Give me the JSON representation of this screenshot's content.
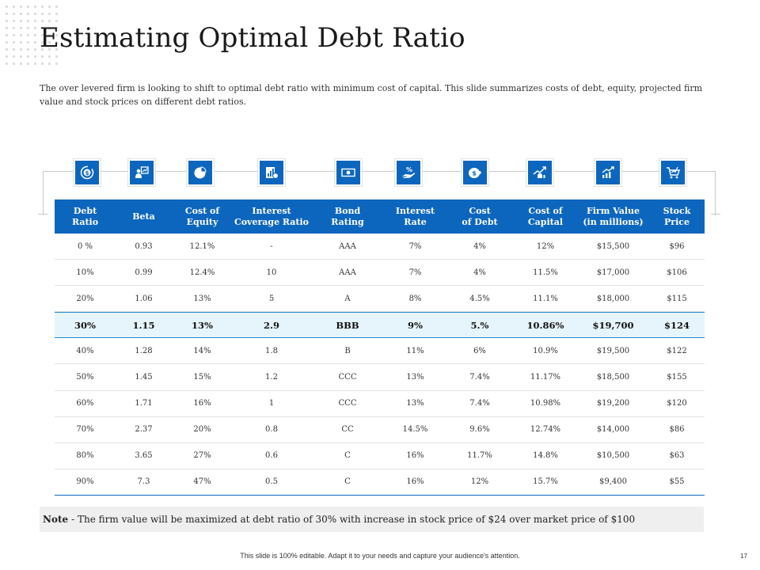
{
  "title": "Estimating Optimal Debt Ratio",
  "subtitle": "The over levered firm is looking to shift to optimal debt ratio with minimum cost of capital. This slide summarizes costs of debt, equity, projected firm value and stock prices on different debt ratios.",
  "icons": [
    "dollar-cycle-icon",
    "presenter-chart-icon",
    "pie-chart-icon",
    "report-coverage-icon",
    "banknote-icon",
    "hand-percent-icon",
    "coin-debt-icon",
    "capital-growth-icon",
    "bar-growth-icon",
    "cart-price-icon"
  ],
  "table": {
    "headers": [
      "Debt\nRatio",
      "Beta",
      "Cost of\nEquity",
      "Interest\nCoverage Ratio",
      "Bond\nRating",
      "Interest\nRate",
      "Cost\nof Debt",
      "Cost of\nCapital",
      "Firm Value\n(in millions)",
      "Stock\nPrice"
    ],
    "rows": [
      [
        "0 %",
        "0.93",
        "12.1%",
        "-",
        "AAA",
        "7%",
        "4%",
        "12%",
        "$15,500",
        "$96"
      ],
      [
        "10%",
        "0.99",
        "12.4%",
        "10",
        "AAA",
        "7%",
        "4%",
        "11.5%",
        "$17,000",
        "$106"
      ],
      [
        "20%",
        "1.06",
        "13%",
        "5",
        "A",
        "8%",
        "4.5%",
        "11.1%",
        "$18,000",
        "$115"
      ],
      [
        "30%",
        "1.15",
        "13%",
        "2.9",
        "BBB",
        "9%",
        "5.%",
        "10.86%",
        "$19,700",
        "$124"
      ],
      [
        "40%",
        "1.28",
        "14%",
        "1.8",
        "B",
        "11%",
        "6%",
        "10.9%",
        "$19,500",
        "$122"
      ],
      [
        "50%",
        "1.45",
        "15%",
        "1.2",
        "CCC",
        "13%",
        "7.4%",
        "11.17%",
        "$18,500",
        "$155"
      ],
      [
        "60%",
        "1.71",
        "16%",
        "1",
        "CCC",
        "13%",
        "7.4%",
        "10.98%",
        "$19,200",
        "$120"
      ],
      [
        "70%",
        "2.37",
        "20%",
        "0.8",
        "CC",
        "14.5%",
        "9.6%",
        "12.74%",
        "$14,000",
        "$86"
      ],
      [
        "80%",
        "3.65",
        "27%",
        "0.6",
        "C",
        "16%",
        "11.7%",
        "14.8%",
        "$10,500",
        "$63"
      ],
      [
        "90%",
        "7.3",
        "47%",
        "0.5",
        "C",
        "16%",
        "12%",
        "15.7%",
        "$9,400",
        "$55"
      ]
    ],
    "highlight_row": 3
  },
  "note": {
    "label": "Note",
    "text": "- The firm value will be maximized at debt ratio of 30% with increase in stock price of $24 over market price of $100"
  },
  "footer": "This slide is 100% editable. Adapt it to your needs and capture your audience's attention.",
  "page_number": "17",
  "colors": {
    "accent": "#0d66bd",
    "highlight": "#e6f4fb"
  }
}
